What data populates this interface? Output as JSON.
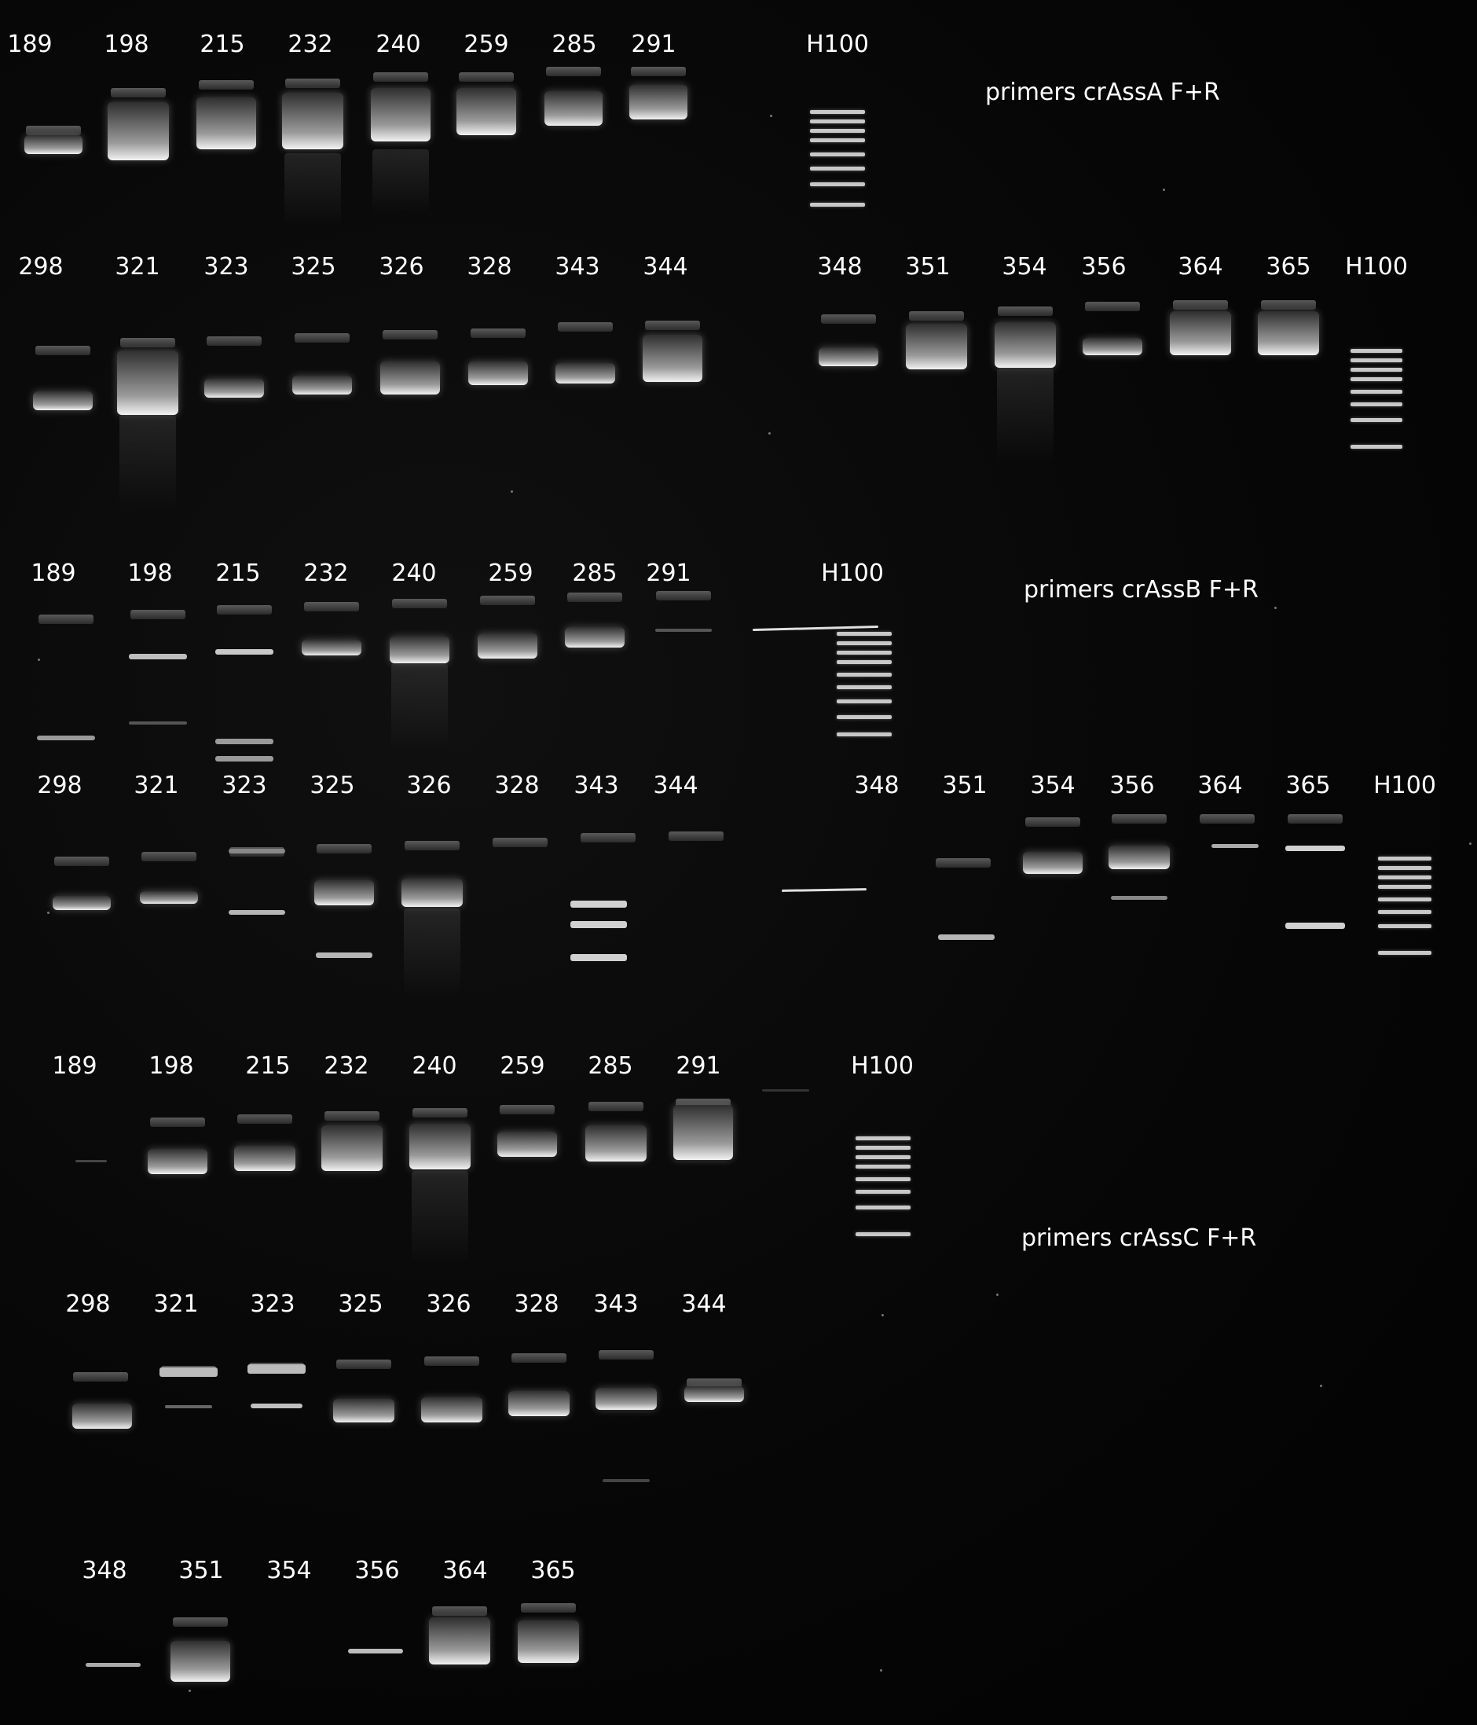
{
  "rows": [
    {
      "id": "A1",
      "lanes": [
        "189",
        "198",
        "215",
        "232",
        "240",
        "259",
        "285",
        "291"
      ],
      "ladder": "H100",
      "primer": "primers crAssA F+R"
    },
    {
      "id": "A2",
      "lanes": [
        "298",
        "321",
        "323",
        "325",
        "326",
        "328",
        "343",
        "344",
        "348",
        "351",
        "354",
        "356",
        "364",
        "365"
      ],
      "ladder": "H100"
    },
    {
      "id": "B1",
      "lanes": [
        "189",
        "198",
        "215",
        "232",
        "240",
        "259",
        "285",
        "291"
      ],
      "ladder": "H100",
      "primer": "primers crAssB F+R"
    },
    {
      "id": "B2",
      "lanes": [
        "298",
        "321",
        "323",
        "325",
        "326",
        "328",
        "343",
        "344",
        "348",
        "351",
        "354",
        "356",
        "364",
        "365"
      ],
      "ladder": "H100"
    },
    {
      "id": "C1",
      "lanes": [
        "189",
        "198",
        "215",
        "232",
        "240",
        "259",
        "285",
        "291"
      ],
      "ladder": "H100",
      "primer": "primers crAssC F+R"
    },
    {
      "id": "C2",
      "lanes": [
        "298",
        "321",
        "323",
        "325",
        "326",
        "328",
        "343",
        "344"
      ]
    },
    {
      "id": "C3",
      "lanes": [
        "348",
        "351",
        "354",
        "356",
        "364",
        "365"
      ]
    }
  ]
}
